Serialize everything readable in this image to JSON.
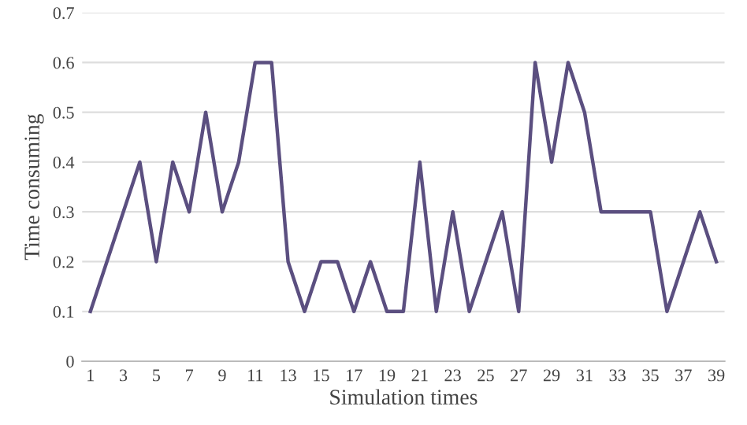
{
  "chart_data": {
    "type": "line",
    "xlabel": "Simulation times",
    "ylabel": "Time consuming",
    "x": [
      1,
      2,
      3,
      4,
      5,
      6,
      7,
      8,
      9,
      10,
      11,
      12,
      13,
      14,
      15,
      16,
      17,
      18,
      19,
      20,
      21,
      22,
      23,
      24,
      25,
      26,
      27,
      28,
      29,
      30,
      31,
      32,
      33,
      34,
      35,
      36,
      37,
      38,
      39
    ],
    "series": [
      {
        "color": "#5b4f80",
        "values": [
          0.1,
          0.2,
          0.3,
          0.4,
          0.2,
          0.4,
          0.3,
          0.5,
          0.3,
          0.4,
          0.6,
          0.6,
          0.2,
          0.1,
          0.2,
          0.2,
          0.1,
          0.2,
          0.1,
          0.1,
          0.4,
          0.1,
          0.3,
          0.1,
          0.2,
          0.3,
          0.1,
          0.6,
          0.4,
          0.6,
          0.5,
          0.3,
          0.3,
          0.3,
          0.3,
          0.1,
          0.2,
          0.3,
          0.2
        ]
      }
    ],
    "xlim": [
      0.5,
      39.5
    ],
    "xticks": [
      1,
      3,
      5,
      7,
      9,
      11,
      13,
      15,
      17,
      19,
      21,
      23,
      25,
      27,
      29,
      31,
      33,
      35,
      37,
      39
    ],
    "ylim": [
      0,
      0.7
    ],
    "yticks": [
      0,
      0.1,
      0.2,
      0.3,
      0.4,
      0.5,
      0.6,
      0.7
    ],
    "grid": "y"
  }
}
